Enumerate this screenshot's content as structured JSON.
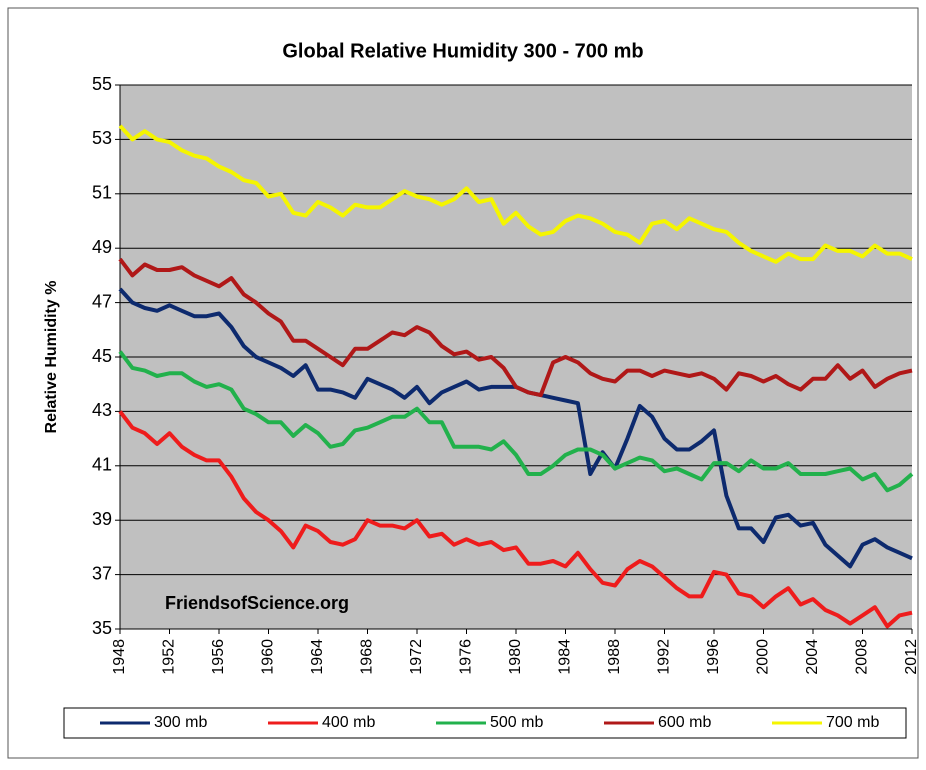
{
  "chart_data": {
    "type": "line",
    "title": "Global Relative Humidity 300 - 700 mb",
    "y_label": "Relative Humidity %",
    "annotation": "FriendsofScience.org",
    "x": [
      1948,
      1949,
      1950,
      1951,
      1952,
      1953,
      1954,
      1955,
      1956,
      1957,
      1958,
      1959,
      1960,
      1961,
      1962,
      1963,
      1964,
      1965,
      1966,
      1967,
      1968,
      1969,
      1970,
      1971,
      1972,
      1973,
      1974,
      1975,
      1976,
      1977,
      1978,
      1979,
      1980,
      1981,
      1982,
      1983,
      1984,
      1985,
      1986,
      1987,
      1988,
      1989,
      1990,
      1991,
      1992,
      1993,
      1994,
      1995,
      1996,
      1997,
      1998,
      1999,
      2000,
      2001,
      2002,
      2003,
      2004,
      2005,
      2006,
      2007,
      2008,
      2009,
      2010,
      2011,
      2012
    ],
    "xlim": [
      1948,
      2012
    ],
    "xticks": [
      1948,
      1952,
      1956,
      1960,
      1964,
      1968,
      1972,
      1976,
      1980,
      1984,
      1988,
      1992,
      1996,
      2000,
      2004,
      2008,
      2012
    ],
    "ylim": [
      35,
      55
    ],
    "yticks": [
      35,
      37,
      39,
      41,
      43,
      45,
      47,
      49,
      51,
      53,
      55
    ],
    "grid": true,
    "legend": "bottom",
    "series": [
      {
        "name": "300 mb",
        "color": "#0d2a6e",
        "values": [
          47.5,
          47.0,
          46.8,
          46.7,
          46.9,
          46.7,
          46.5,
          46.5,
          46.6,
          46.1,
          45.4,
          45.0,
          44.8,
          44.6,
          44.3,
          44.7,
          43.8,
          43.8,
          43.7,
          43.5,
          44.2,
          44.0,
          43.8,
          43.5,
          43.9,
          43.3,
          43.7,
          43.9,
          44.1,
          43.8,
          43.9,
          43.9,
          43.9,
          43.7,
          43.6,
          43.5,
          43.4,
          43.3,
          40.7,
          41.5,
          40.9,
          42.0,
          43.2,
          42.8,
          42.0,
          41.6,
          41.6,
          41.9,
          42.3,
          39.9,
          38.7,
          38.7,
          38.2,
          39.1,
          39.2,
          38.8,
          38.9,
          38.1,
          37.7,
          37.3,
          38.1,
          38.3,
          38.0,
          37.8,
          37.6
        ]
      },
      {
        "name": "400 mb",
        "color": "#ee1c1c",
        "values": [
          43.0,
          42.4,
          42.2,
          41.8,
          42.2,
          41.7,
          41.4,
          41.2,
          41.2,
          40.6,
          39.8,
          39.3,
          39.0,
          38.6,
          38.0,
          38.8,
          38.6,
          38.2,
          38.1,
          38.3,
          39.0,
          38.8,
          38.8,
          38.7,
          39.0,
          38.4,
          38.5,
          38.1,
          38.3,
          38.1,
          38.2,
          37.9,
          38.0,
          37.4,
          37.4,
          37.5,
          37.3,
          37.8,
          37.2,
          36.7,
          36.6,
          37.2,
          37.5,
          37.3,
          36.9,
          36.5,
          36.2,
          36.2,
          37.1,
          37.0,
          36.3,
          36.2,
          35.8,
          36.2,
          36.5,
          35.9,
          36.1,
          35.7,
          35.5,
          35.2,
          35.5,
          35.8,
          35.1,
          35.5,
          35.6
        ]
      },
      {
        "name": "500 mb",
        "color": "#22b14c",
        "values": [
          45.2,
          44.6,
          44.5,
          44.3,
          44.4,
          44.4,
          44.1,
          43.9,
          44.0,
          43.8,
          43.1,
          42.9,
          42.6,
          42.6,
          42.1,
          42.5,
          42.2,
          41.7,
          41.8,
          42.3,
          42.4,
          42.6,
          42.8,
          42.8,
          43.1,
          42.6,
          42.6,
          41.7,
          41.7,
          41.7,
          41.6,
          41.9,
          41.4,
          40.7,
          40.7,
          41.0,
          41.4,
          41.6,
          41.6,
          41.4,
          40.9,
          41.1,
          41.3,
          41.2,
          40.8,
          40.9,
          40.7,
          40.5,
          41.1,
          41.1,
          40.8,
          41.2,
          40.9,
          40.9,
          41.1,
          40.7,
          40.7,
          40.7,
          40.8,
          40.9,
          40.5,
          40.7,
          40.1,
          40.3,
          40.7
        ]
      },
      {
        "name": "600 mb",
        "color": "#b01818",
        "values": [
          48.6,
          48.0,
          48.4,
          48.2,
          48.2,
          48.3,
          48.0,
          47.8,
          47.6,
          47.9,
          47.3,
          47.0,
          46.6,
          46.3,
          45.6,
          45.6,
          45.3,
          45.0,
          44.7,
          45.3,
          45.3,
          45.6,
          45.9,
          45.8,
          46.1,
          45.9,
          45.4,
          45.1,
          45.2,
          44.9,
          45.0,
          44.6,
          43.9,
          43.7,
          43.6,
          44.8,
          45.0,
          44.8,
          44.4,
          44.2,
          44.1,
          44.5,
          44.5,
          44.3,
          44.5,
          44.4,
          44.3,
          44.4,
          44.2,
          43.8,
          44.4,
          44.3,
          44.1,
          44.3,
          44.0,
          43.8,
          44.2,
          44.2,
          44.7,
          44.2,
          44.5,
          43.9,
          44.2,
          44.4,
          44.5
        ]
      },
      {
        "name": "700 mb",
        "color": "#f5f500",
        "values": [
          53.5,
          53.0,
          53.3,
          53.0,
          52.9,
          52.6,
          52.4,
          52.3,
          52.0,
          51.8,
          51.5,
          51.4,
          50.9,
          51.0,
          50.3,
          50.2,
          50.7,
          50.5,
          50.2,
          50.6,
          50.5,
          50.5,
          50.8,
          51.1,
          50.9,
          50.8,
          50.6,
          50.8,
          51.2,
          50.7,
          50.8,
          49.9,
          50.3,
          49.8,
          49.5,
          49.6,
          50.0,
          50.2,
          50.1,
          49.9,
          49.6,
          49.5,
          49.2,
          49.9,
          50.0,
          49.7,
          50.1,
          49.9,
          49.7,
          49.6,
          49.2,
          48.9,
          48.7,
          48.5,
          48.8,
          48.6,
          48.6,
          49.1,
          48.9,
          48.9,
          48.7,
          49.1,
          48.8,
          48.8,
          48.6
        ]
      }
    ]
  }
}
